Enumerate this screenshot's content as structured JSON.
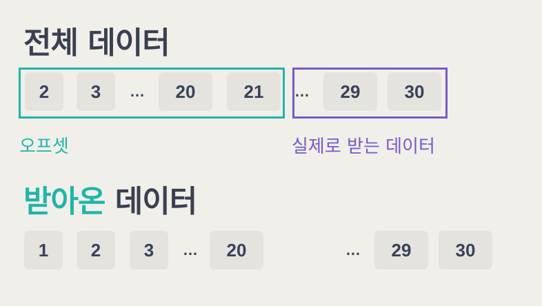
{
  "full_data": {
    "title": "전체 데이터",
    "items": [
      "2",
      "3",
      "…",
      "20",
      "21",
      "…",
      "29",
      "30"
    ]
  },
  "received_data": {
    "title_highlight": "받아온",
    "title_rest": "데이터",
    "items": [
      "1",
      "2",
      "3",
      "…",
      "20",
      "…",
      "29",
      "30"
    ]
  },
  "labels": {
    "offset": "오프셋",
    "actual_data": "실제로 받는 데이터"
  },
  "colors": {
    "background": "#f1efea",
    "text": "#3a4050",
    "offset_accent": "#1fb5a8",
    "actual_accent": "#7859c7",
    "cell": "#e4e3de"
  }
}
